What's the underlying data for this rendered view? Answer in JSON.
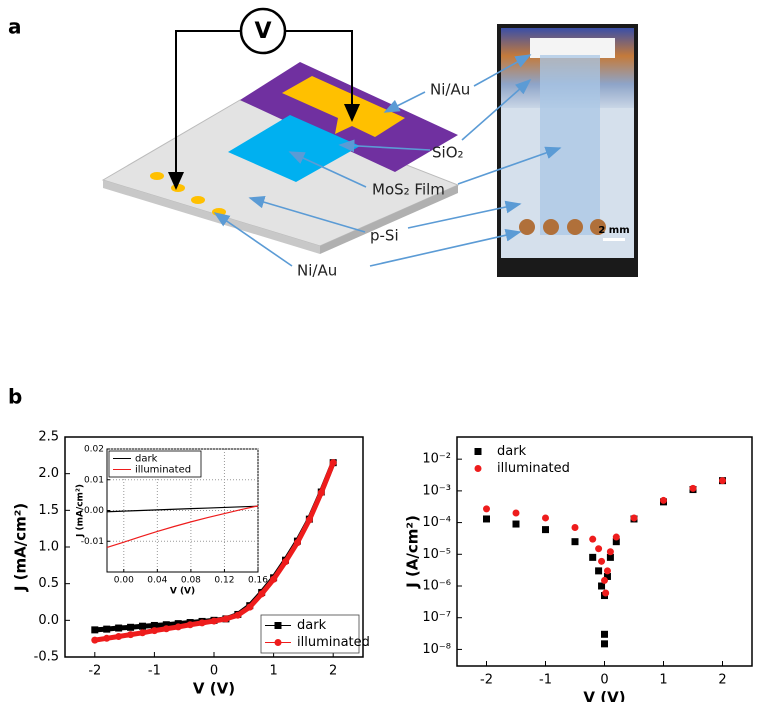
{
  "panel_a": {
    "label": "a",
    "voltmeter": "V",
    "labels": [
      "Ni/Au",
      "SiO₂",
      "MoS₂ Film",
      "p-Si",
      "Ni/Au"
    ],
    "scale_bar": "2 mm"
  },
  "panel_b": {
    "label": "b"
  },
  "chart_data": [
    {
      "type": "line",
      "xlabel": "V (V)",
      "ylabel": "J (mA/cm²)",
      "markers": true,
      "legend": "lower right",
      "xlim": [
        -2.5,
        2.5
      ],
      "xticks": [
        -2,
        -1,
        0,
        1,
        2
      ],
      "ylim": [
        -0.5,
        2.5
      ],
      "yticks": [
        -0.5,
        {
          "value": 0,
          "label": "0.0"
        },
        0.5,
        {
          "value": 1,
          "label": "1.0"
        },
        1.5,
        {
          "value": 2,
          "label": "2.0"
        },
        2.5
      ],
      "x": [
        -2,
        -1.8,
        -1.6,
        -1.4,
        -1.2,
        -1,
        -0.8,
        -0.6,
        -0.4,
        -0.2,
        0,
        0.2,
        0.4,
        0.6,
        0.8,
        1,
        1.2,
        1.4,
        1.6,
        1.8,
        2
      ],
      "series": [
        {
          "name": "dark",
          "color": "#000000",
          "marker": "square",
          "values": [
            -0.13,
            -0.12,
            -0.105,
            -0.095,
            -0.08,
            -0.07,
            -0.06,
            -0.045,
            -0.03,
            -0.015,
            0,
            0.02,
            0.08,
            0.2,
            0.38,
            0.58,
            0.82,
            1.08,
            1.38,
            1.75,
            2.15
          ]
        },
        {
          "name": "illuminated",
          "color": "#ee1c1c",
          "marker": "circle",
          "values": [
            -0.27,
            -0.245,
            -0.22,
            -0.195,
            -0.17,
            -0.14,
            -0.115,
            -0.09,
            -0.06,
            -0.035,
            -0.01,
            0.02,
            0.07,
            0.18,
            0.36,
            0.56,
            0.8,
            1.06,
            1.37,
            1.74,
            2.15
          ]
        }
      ]
    },
    {
      "type": "line",
      "xlabel": "V (V)",
      "ylabel": "J (mA/cm²)",
      "markers": false,
      "legend": "upper left",
      "grid": true,
      "xlim": [
        -0.02,
        0.16
      ],
      "xticks": [
        {
          "value": 0,
          "label": "0.00"
        },
        {
          "value": 0.04,
          "label": "0.04"
        },
        {
          "value": 0.08,
          "label": "0.08"
        },
        0.12,
        0.16
      ],
      "ylim": [
        -0.02,
        0.02
      ],
      "yticks": [
        -0.01,
        {
          "value": 0,
          "label": "0.00"
        },
        0.01,
        0.02
      ],
      "x": [
        -0.02,
        0,
        0.02,
        0.04,
        0.06,
        0.08,
        0.1,
        0.12,
        0.14,
        0.16
      ],
      "series": [
        {
          "name": "dark",
          "color": "#000000",
          "values": [
            -0.0004,
            -0.0002,
            0,
            0.0002,
            0.0004,
            0.0006,
            0.0008,
            0.001,
            0.0012,
            0.0014
          ]
        },
        {
          "name": "illuminated",
          "color": "#ee1c1c",
          "values": [
            -0.012,
            -0.0103,
            -0.0085,
            -0.0068,
            -0.0052,
            -0.0037,
            -0.0023,
            -0.001,
            0.0003,
            0.0015
          ]
        }
      ]
    },
    {
      "type": "scatter",
      "xlabel": "V (V)",
      "ylabel": "J (A/cm²)",
      "log_y": true,
      "legend": "upper left",
      "xlim": [
        -2.5,
        2.5
      ],
      "xticks": [
        -2,
        -1,
        0,
        1,
        2
      ],
      "ylim": [
        3e-09,
        0.05
      ],
      "yticks": [
        {
          "value": 1e-08,
          "label": "10⁻⁸"
        },
        {
          "value": 1e-07,
          "label": "10⁻⁷"
        },
        {
          "value": 1e-06,
          "label": "10⁻⁶"
        },
        {
          "value": 1e-05,
          "label": "10⁻⁵"
        },
        {
          "value": 0.0001,
          "label": "10⁻⁴"
        },
        {
          "value": 0.001,
          "label": "10⁻³"
        },
        {
          "value": 0.01,
          "label": "10⁻²"
        }
      ],
      "series": [
        {
          "name": "dark",
          "color": "#000000",
          "marker": "square",
          "x": [
            -2,
            -1.5,
            -1,
            -0.5,
            -0.2,
            -0.1,
            -0.05,
            0,
            0,
            0,
            0.05,
            0.1,
            0.2,
            0.5,
            1,
            1.5,
            2
          ],
          "values": [
            0.00013,
            9e-05,
            6e-05,
            2.5e-05,
            8e-06,
            3e-06,
            1e-06,
            5e-07,
            3e-08,
            1.5e-08,
            2e-06,
            8e-06,
            2.5e-05,
            0.00013,
            0.00045,
            0.0011,
            0.0021
          ]
        },
        {
          "name": "illuminated",
          "color": "#ee1c1c",
          "marker": "circle",
          "x": [
            -2,
            -1.5,
            -1,
            -0.5,
            -0.2,
            -0.1,
            -0.05,
            0,
            0.02,
            0.05,
            0.1,
            0.2,
            0.5,
            1,
            1.5,
            2
          ],
          "values": [
            0.00027,
            0.0002,
            0.00014,
            7e-05,
            3e-05,
            1.5e-05,
            6e-06,
            1.5e-06,
            6e-07,
            3e-06,
            1.2e-05,
            3.5e-05,
            0.00014,
            0.0005,
            0.0012,
            0.0021
          ]
        }
      ]
    }
  ]
}
